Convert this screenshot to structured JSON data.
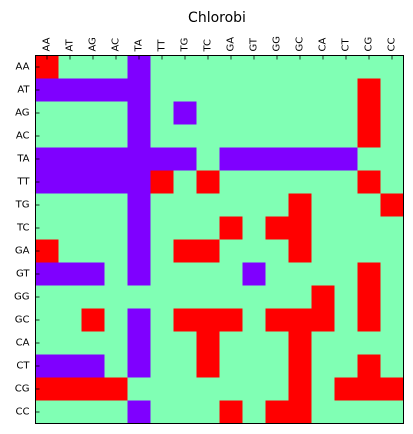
{
  "chart_data": {
    "type": "heatmap",
    "title": "Chlorobi",
    "x_labels": [
      "AA",
      "AT",
      "AG",
      "AC",
      "TA",
      "TT",
      "TG",
      "TC",
      "GA",
      "GT",
      "GG",
      "GC",
      "CA",
      "CT",
      "CG",
      "CC"
    ],
    "y_labels": [
      "AA",
      "AT",
      "AG",
      "AC",
      "TA",
      "TT",
      "TG",
      "TC",
      "GA",
      "GT",
      "GG",
      "GC",
      "CA",
      "CT",
      "CG",
      "CC"
    ],
    "x_tick_position": "top",
    "x_tick_rotation": "vertical",
    "value_levels": [
      0,
      1,
      2
    ],
    "colormap": {
      "0": "#7f00ff",
      "1": "#80ffb4",
      "2": "#ff0000"
    },
    "matrix": [
      [
        2,
        1,
        1,
        1,
        0,
        1,
        1,
        1,
        1,
        1,
        1,
        1,
        1,
        1,
        1,
        1
      ],
      [
        0,
        0,
        0,
        0,
        0,
        1,
        1,
        1,
        1,
        1,
        1,
        1,
        1,
        1,
        2,
        1
      ],
      [
        1,
        1,
        1,
        1,
        0,
        1,
        0,
        1,
        1,
        1,
        1,
        1,
        1,
        1,
        2,
        1
      ],
      [
        1,
        1,
        1,
        1,
        0,
        1,
        1,
        1,
        1,
        1,
        1,
        1,
        1,
        1,
        2,
        1
      ],
      [
        0,
        0,
        0,
        0,
        0,
        0,
        0,
        1,
        0,
        0,
        0,
        0,
        0,
        0,
        1,
        1
      ],
      [
        0,
        0,
        0,
        0,
        0,
        2,
        1,
        2,
        1,
        1,
        1,
        1,
        1,
        1,
        2,
        1
      ],
      [
        1,
        1,
        1,
        1,
        0,
        1,
        1,
        1,
        1,
        1,
        1,
        2,
        1,
        1,
        1,
        2
      ],
      [
        1,
        1,
        1,
        1,
        0,
        1,
        1,
        1,
        2,
        1,
        2,
        2,
        1,
        1,
        1,
        1
      ],
      [
        2,
        1,
        1,
        1,
        0,
        1,
        2,
        2,
        1,
        1,
        1,
        2,
        1,
        1,
        1,
        1
      ],
      [
        0,
        0,
        0,
        1,
        0,
        1,
        1,
        1,
        1,
        0,
        1,
        1,
        1,
        1,
        2,
        1
      ],
      [
        1,
        1,
        1,
        1,
        1,
        1,
        1,
        1,
        1,
        1,
        1,
        1,
        2,
        1,
        2,
        1
      ],
      [
        1,
        1,
        2,
        1,
        0,
        1,
        2,
        2,
        2,
        1,
        2,
        2,
        2,
        1,
        2,
        1
      ],
      [
        1,
        1,
        1,
        1,
        0,
        1,
        1,
        2,
        1,
        1,
        1,
        2,
        1,
        1,
        1,
        1
      ],
      [
        0,
        0,
        0,
        1,
        0,
        1,
        1,
        2,
        1,
        1,
        1,
        2,
        1,
        1,
        2,
        1
      ],
      [
        2,
        2,
        2,
        2,
        1,
        1,
        1,
        1,
        1,
        1,
        1,
        2,
        1,
        2,
        2,
        2
      ],
      [
        1,
        1,
        1,
        1,
        0,
        1,
        1,
        1,
        2,
        1,
        2,
        2,
        1,
        1,
        1,
        1
      ]
    ],
    "grid": false,
    "legend": "none"
  }
}
